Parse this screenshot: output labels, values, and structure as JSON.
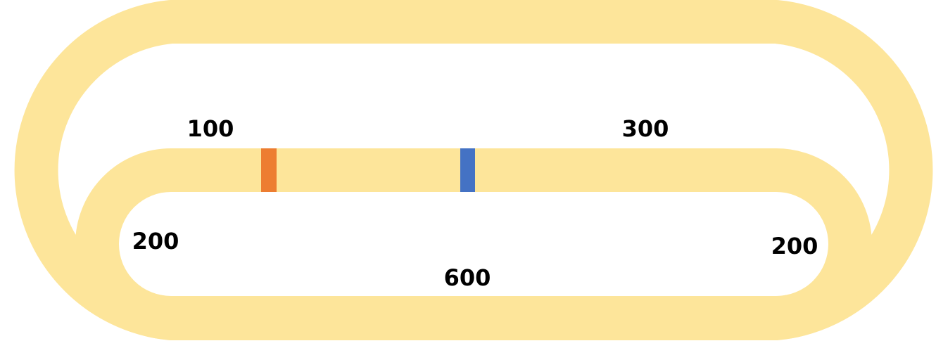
{
  "colors": {
    "track": "#FDE59A",
    "marker_orange": "#ED7D31",
    "marker_blue": "#4472C4",
    "label": "#000000",
    "background": "#FFFFFF"
  },
  "labels": {
    "top_left_segment": "100",
    "top_right_segment": "300",
    "left_curve": "200",
    "right_curve": "200",
    "bottom_segment": "600"
  },
  "markers": [
    {
      "name": "orange-marker",
      "color": "#ED7D31"
    },
    {
      "name": "blue-marker",
      "color": "#4472C4"
    }
  ]
}
